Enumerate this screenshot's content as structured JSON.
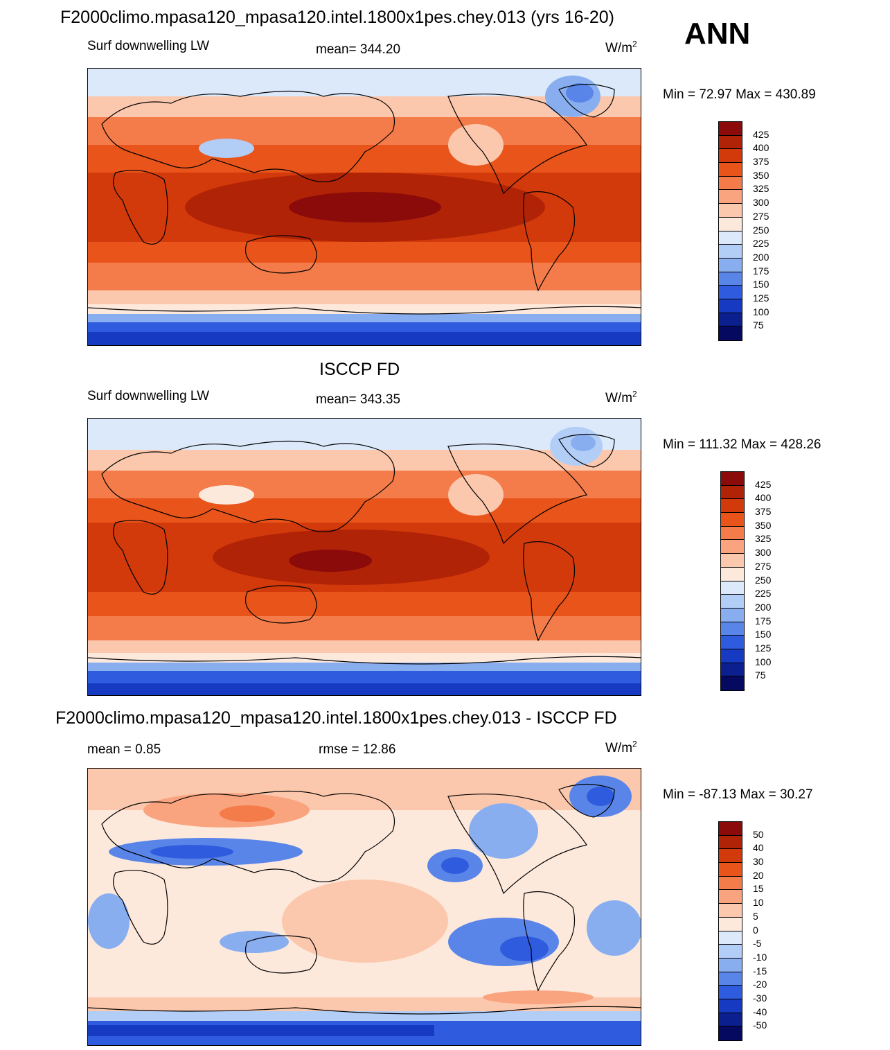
{
  "title": "F2000climo.mpasa120_mpasa120.intel.1800x1pes.chey.013 (yrs 16-20)",
  "season": "ANN",
  "panels": [
    {
      "id": "model",
      "section_title": "",
      "left_label": "Surf downwelling LW",
      "center_label": "mean= 344.20",
      "units": "W/m",
      "units_sup": "2",
      "minmax": "Min =  72.97 Max = 430.89",
      "colorbar_levels": [
        "425",
        "400",
        "375",
        "350",
        "325",
        "300",
        "275",
        "250",
        "225",
        "200",
        "175",
        "150",
        "125",
        "100",
        "75"
      ]
    },
    {
      "id": "obs",
      "section_title": "ISCCP FD",
      "left_label": "Surf downwelling LW",
      "center_label": "mean= 343.35",
      "units": "W/m",
      "units_sup": "2",
      "minmax": "Min = 111.32 Max = 428.26",
      "colorbar_levels": [
        "425",
        "400",
        "375",
        "350",
        "325",
        "300",
        "275",
        "250",
        "225",
        "200",
        "175",
        "150",
        "125",
        "100",
        "75"
      ]
    },
    {
      "id": "diff",
      "section_title": "F2000climo.mpasa120_mpasa120.intel.1800x1pes.chey.013 - ISCCP FD",
      "left_label": "mean =   0.85",
      "center_label": "rmse =  12.86",
      "units": "W/m",
      "units_sup": "2",
      "minmax": "Min = -87.13 Max =  30.27",
      "colorbar_levels": [
        "50",
        "40",
        "30",
        "20",
        "15",
        "10",
        "5",
        "0",
        "-5",
        "-10",
        "-15",
        "-20",
        "-30",
        "-40",
        "-50"
      ]
    }
  ],
  "colorbar_colors": [
    "#8b0a0a",
    "#b12306",
    "#d23a0b",
    "#e9541a",
    "#f47c4a",
    "#f9a47f",
    "#fcc8ad",
    "#fde9dc",
    "#dbe9fb",
    "#b2cdf6",
    "#89aef0",
    "#5a85e8",
    "#2f5bde",
    "#163ac1",
    "#0b1f8f",
    "#050a60"
  ],
  "map_fields": {
    "model": {
      "type": "lw",
      "palette_low": "#0a1f8f",
      "palette_high": "#9b1208"
    },
    "obs": {
      "type": "lw"
    },
    "diff": {
      "type": "diff"
    }
  }
}
